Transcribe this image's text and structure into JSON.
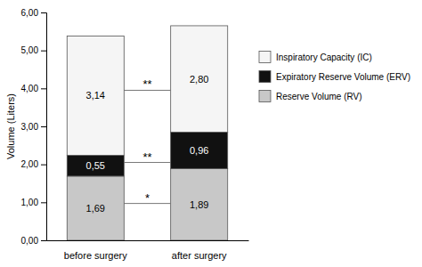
{
  "chart_data": {
    "type": "bar",
    "stacked": true,
    "data_labels": true,
    "legend": "right",
    "y_label": "Volume (Liters)",
    "categories": [
      "before surgery",
      "after surgery"
    ],
    "series": [
      {
        "name": "Reserve Volume (RV)",
        "color": "#c8c8c8",
        "values": [
          1.69,
          1.89
        ],
        "value_labels": [
          "1,69",
          "1,89"
        ]
      },
      {
        "name": "Expiratory Reserve Volume (ERV)",
        "color": "#111111",
        "values": [
          0.55,
          0.96
        ],
        "value_labels": [
          "0,55",
          "0,96"
        ]
      },
      {
        "name": "Inspiratory Capacity (IC)",
        "color": "#f5f5f5",
        "values": [
          3.14,
          2.8
        ],
        "value_labels": [
          "3,14",
          "2,80"
        ]
      }
    ],
    "ylim": [
      0,
      6.0
    ],
    "yticks": [
      {
        "value": 0.0,
        "label": "0,00"
      },
      {
        "value": 1.0,
        "label": "1,00"
      },
      {
        "value": 2.0,
        "label": "2,00"
      },
      {
        "value": 3.0,
        "label": "3,00"
      },
      {
        "value": 4.0,
        "label": "4,00"
      },
      {
        "value": 5.0,
        "label": "5,00"
      },
      {
        "value": 6.0,
        "label": "6,00"
      }
    ],
    "annotations": [
      {
        "text": "*",
        "y": 0.97
      },
      {
        "text": "**",
        "y": 2.05
      },
      {
        "text": "**",
        "y": 3.95
      }
    ]
  }
}
